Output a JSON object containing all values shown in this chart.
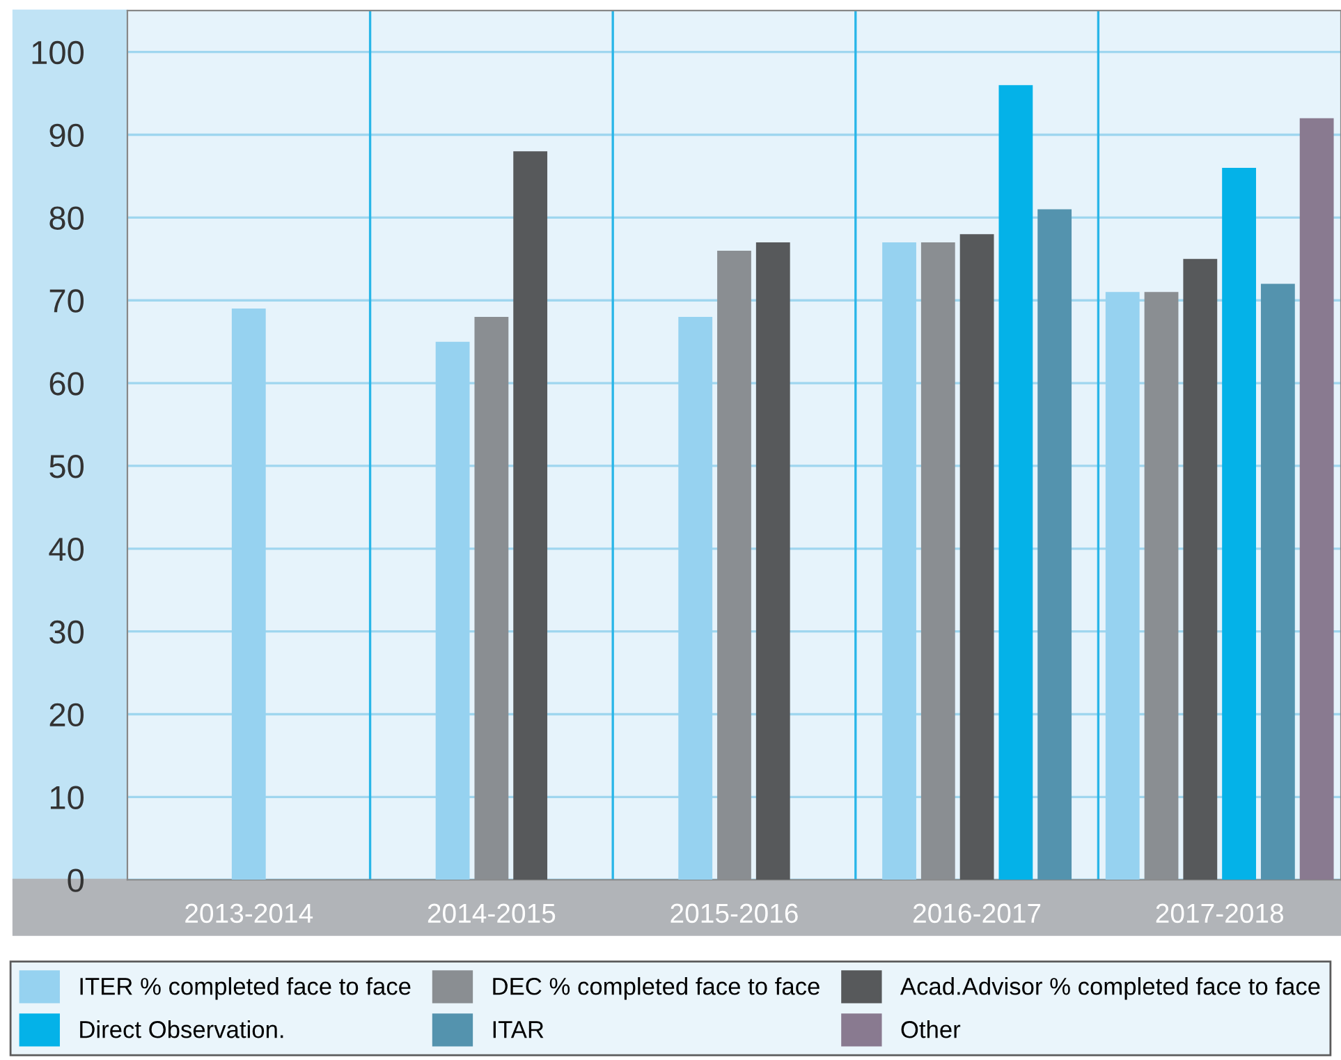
{
  "chart_data": {
    "type": "bar",
    "categories": [
      "2013-2014",
      "2014-2015",
      "2015-2016",
      "2016-2017",
      "2017-2018"
    ],
    "series": [
      {
        "name": "ITER % completed face to face",
        "color": "#96d2f0",
        "values": [
          69,
          65,
          68,
          77,
          71
        ]
      },
      {
        "name": "DEC % completed face to face",
        "color": "#8a8e92",
        "values": [
          null,
          68,
          76,
          77,
          71
        ]
      },
      {
        "name": "Acad.Advisor % completed face to face",
        "color": "#57595b",
        "values": [
          null,
          88,
          77,
          78,
          75
        ]
      },
      {
        "name": "Direct Observation.",
        "color": "#04b2e8",
        "values": [
          null,
          null,
          null,
          96,
          86
        ]
      },
      {
        "name": "ITAR",
        "color": "#5493ae",
        "values": [
          null,
          null,
          null,
          81,
          72
        ]
      },
      {
        "name": "Other",
        "color": "#897a90",
        "values": [
          null,
          null,
          null,
          null,
          92
        ]
      }
    ],
    "ylim": [
      0,
      105
    ],
    "yticks": [
      0,
      10,
      20,
      30,
      40,
      50,
      60,
      70,
      80,
      90,
      100
    ],
    "grid": "y",
    "legend": "bottom"
  }
}
